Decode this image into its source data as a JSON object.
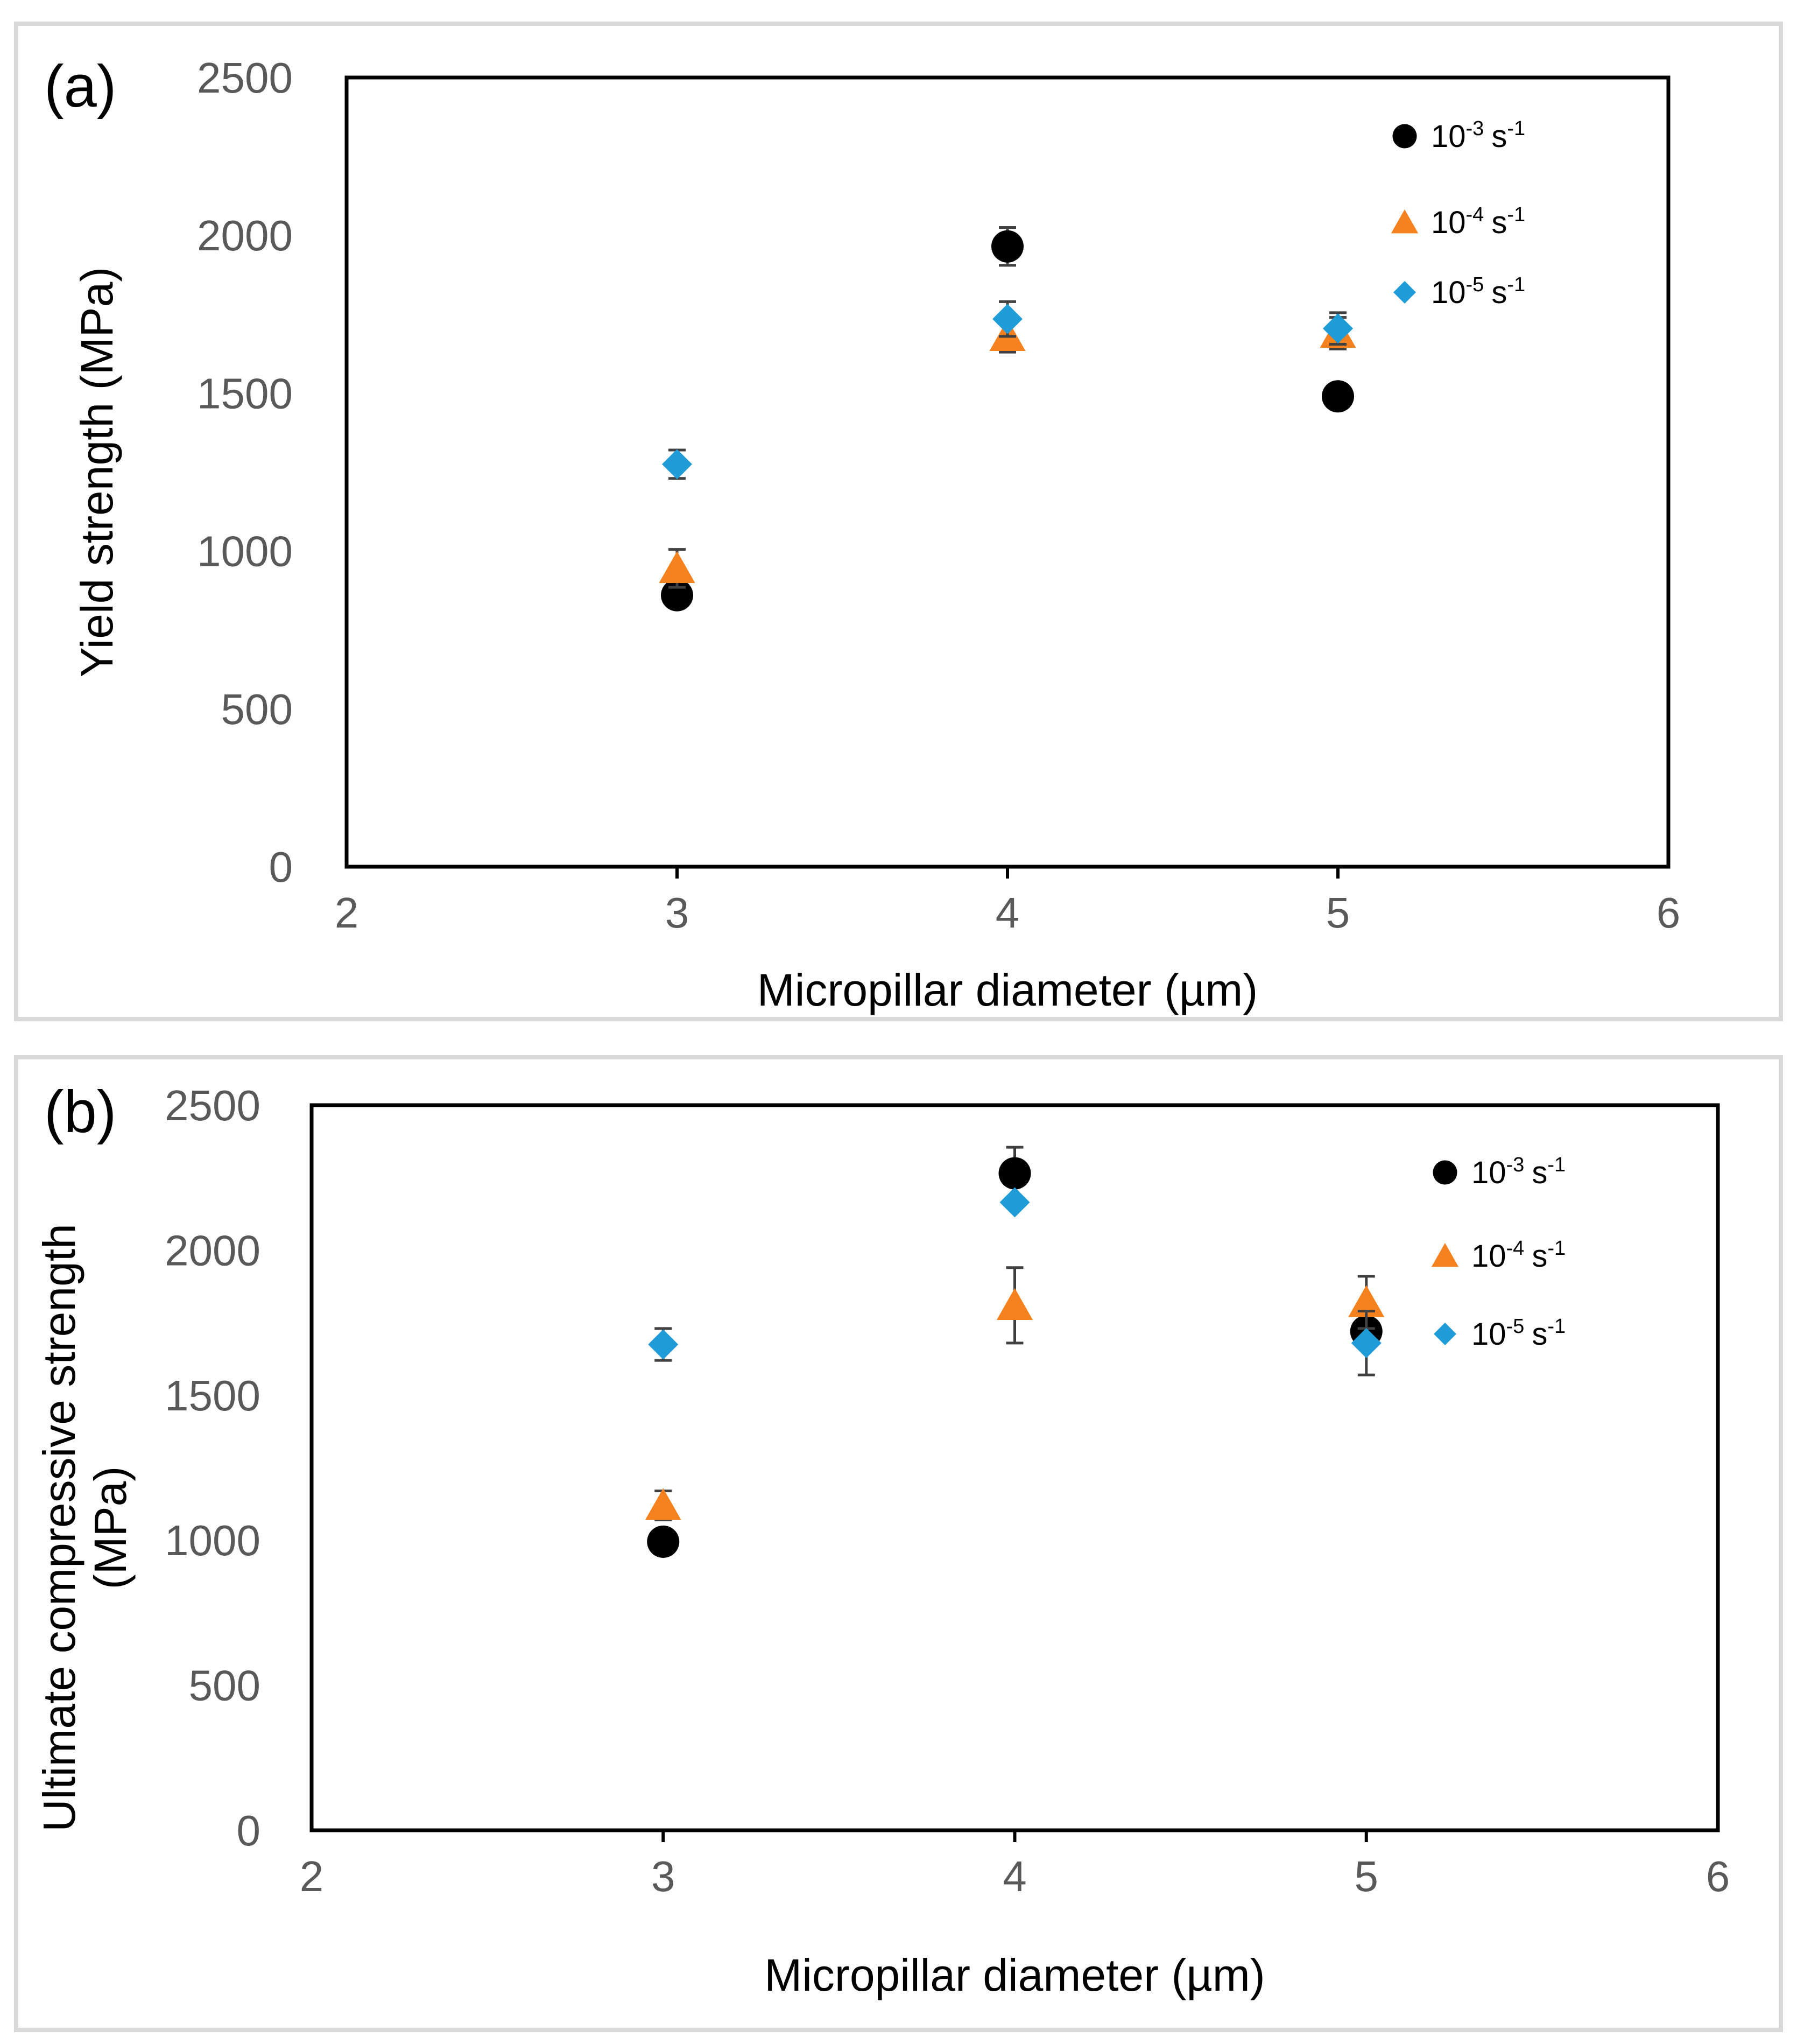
{
  "colors": {
    "series_1": "#000000",
    "series_2": "#f5821f",
    "series_3": "#1f9bd8",
    "frame": "#d9d9d9",
    "tick_text": "#595959"
  },
  "chart_data": [
    {
      "type": "scatter",
      "panel_label": "(a)",
      "xlabel": "Micropillar diameter (µm)",
      "ylabel": "Yield strength (MPa)",
      "xlim": [
        2,
        6
      ],
      "ylim": [
        0,
        2500
      ],
      "xticks": [
        "2",
        "3",
        "4",
        "5",
        "6"
      ],
      "yticks": [
        "0",
        "500",
        "1000",
        "1500",
        "2000",
        "2500"
      ],
      "legend_position": "top-right",
      "series": [
        {
          "name": "10-3 s-1",
          "base": "10",
          "exp": "-3",
          "unit": "s",
          "unit_exp": "-1",
          "marker": "circle",
          "x": [
            3,
            4,
            5
          ],
          "y": [
            860,
            1965,
            1490
          ],
          "err": [
            0,
            60,
            0
          ]
        },
        {
          "name": "10-4 s-1",
          "base": "10",
          "exp": "-4",
          "unit": "s",
          "unit_exp": "-1",
          "marker": "triangle",
          "x": [
            3,
            4,
            5
          ],
          "y": [
            945,
            1680,
            1690
          ],
          "err": [
            60,
            50,
            50
          ]
        },
        {
          "name": "10-5 s-1",
          "base": "10",
          "exp": "-5",
          "unit": "s",
          "unit_exp": "-1",
          "marker": "diamond",
          "x": [
            3,
            4,
            5
          ],
          "y": [
            1275,
            1735,
            1705
          ],
          "err": [
            45,
            55,
            50
          ]
        }
      ]
    },
    {
      "type": "scatter",
      "panel_label": "(b)",
      "xlabel": "Micropillar diameter (µm)",
      "ylabel": [
        "Ultimate compressive strength",
        "(MPa)"
      ],
      "xlim": [
        2,
        6
      ],
      "ylim": [
        0,
        2500
      ],
      "xticks": [
        "2",
        "3",
        "4",
        "5",
        "6"
      ],
      "yticks": [
        "0",
        "500",
        "1000",
        "1500",
        "2000",
        "2500"
      ],
      "legend_position": "top-right",
      "series": [
        {
          "name": "10-3 s-1",
          "base": "10",
          "exp": "-3",
          "unit": "s",
          "unit_exp": "-1",
          "marker": "circle",
          "x": [
            3,
            4,
            5
          ],
          "y": [
            995,
            2265,
            1720
          ],
          "err": [
            0,
            90,
            0
          ]
        },
        {
          "name": "10-4 s-1",
          "base": "10",
          "exp": "-4",
          "unit": "s",
          "unit_exp": "-1",
          "marker": "triangle",
          "x": [
            3,
            4,
            5
          ],
          "y": [
            1120,
            1810,
            1820
          ],
          "err": [
            50,
            130,
            90
          ]
        },
        {
          "name": "10-5 s-1",
          "base": "10",
          "exp": "-5",
          "unit": "s",
          "unit_exp": "-1",
          "marker": "diamond",
          "x": [
            3,
            4,
            5
          ],
          "y": [
            1675,
            2165,
            1680
          ],
          "err": [
            55,
            0,
            110
          ]
        }
      ]
    }
  ]
}
